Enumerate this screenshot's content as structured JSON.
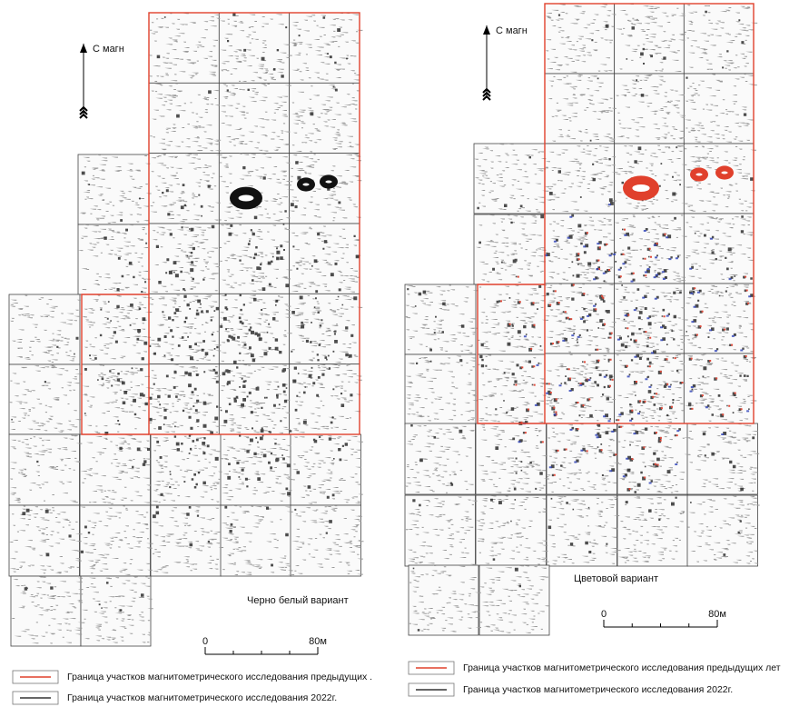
{
  "panels": [
    {
      "north_label": "С магн",
      "caption": "Черно белый вариант",
      "scale": {
        "start": "0",
        "end": "80м"
      },
      "legend": [
        "Граница участков магнитометрического исследования предыдущих .",
        "Граница участков магнитометрического исследования 2022г."
      ]
    },
    {
      "north_label": "С магн",
      "caption": "Цветовой вариант",
      "scale": {
        "start": "0",
        "end": "80м"
      },
      "legend": [
        "Граница участков магнитометрического исследования предыдущих лет",
        "Граница участков магнитометрического исследования 2022г."
      ]
    }
  ]
}
